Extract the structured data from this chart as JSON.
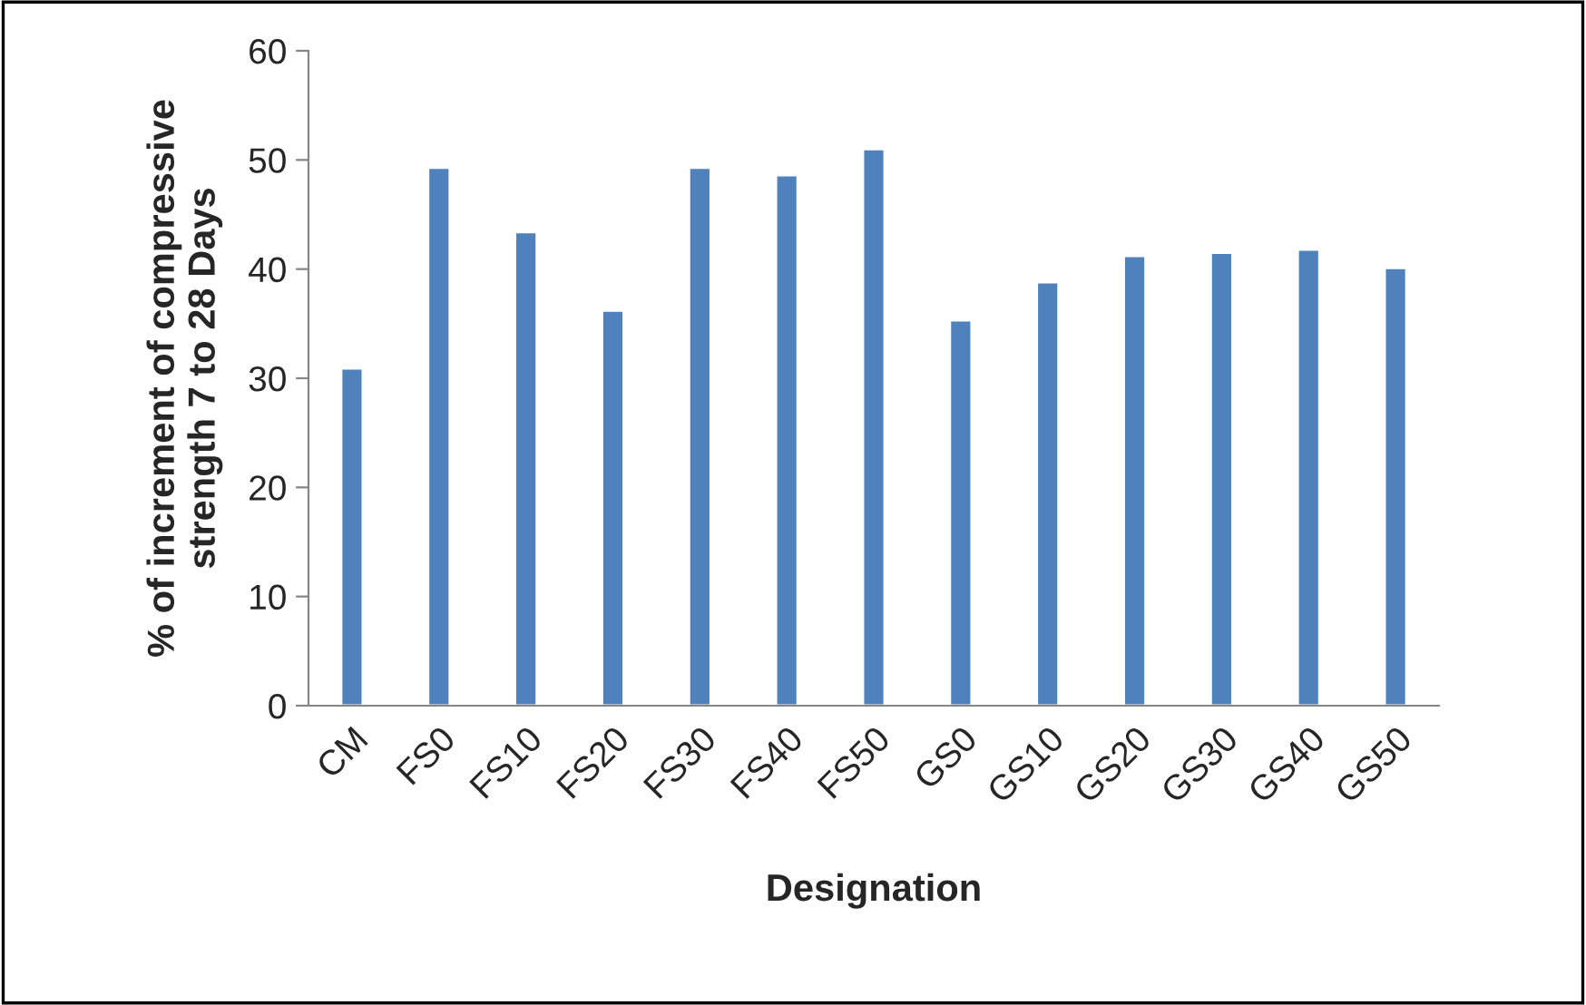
{
  "chart_data": {
    "type": "bar",
    "xlabel": "Designation",
    "ylabel": "% of increment of compressive\nstrength 7 to 28 Days",
    "categories": [
      "CM",
      "FS0",
      "FS10",
      "FS20",
      "FS30",
      "FS40",
      "FS50",
      "GS0",
      "GS10",
      "GS20",
      "GS30",
      "GS40",
      "GS50"
    ],
    "values": [
      30.9,
      49.3,
      43.4,
      36.2,
      49.3,
      48.6,
      51.0,
      35.3,
      38.8,
      41.2,
      41.5,
      41.8,
      40.1
    ],
    "color": "#4f81bd",
    "ylim": [
      0,
      60
    ],
    "yticks": [
      0,
      10,
      20,
      30,
      40,
      50,
      60
    ],
    "grid": false,
    "legend": false
  }
}
